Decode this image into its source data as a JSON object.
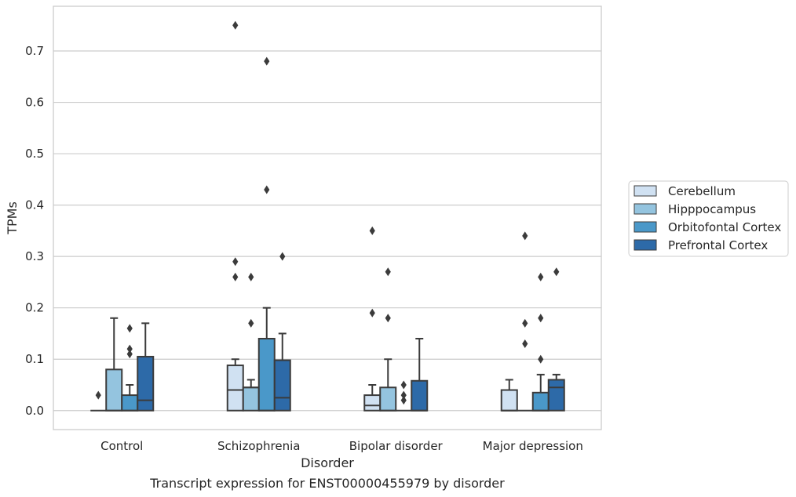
{
  "chart_data": {
    "type": "box",
    "title": "",
    "caption": "Transcript expression for ENST00000455979 by disorder",
    "xlabel": "Disorder",
    "ylabel": "TPMs",
    "ylim": [
      -0.037,
      0.787
    ],
    "yticks": [
      "0.0",
      "0.1",
      "0.2",
      "0.3",
      "0.4",
      "0.5",
      "0.6",
      "0.7"
    ],
    "grid": "horizontal",
    "legend_position": "right",
    "categories": [
      "Control",
      "Schizophrenia",
      "Bipolar disorder",
      "Major depression"
    ],
    "series": [
      {
        "name": "Cerebellum",
        "color": "#d0e1f2",
        "boxes": [
          {
            "q1": 0.0,
            "median": 0.0,
            "q3": 0.0,
            "whisker_low": 0.0,
            "whisker_high": 0.0,
            "outliers": [
              0.03
            ]
          },
          {
            "q1": 0.0,
            "median": 0.04,
            "q3": 0.088,
            "whisker_low": 0.0,
            "whisker_high": 0.1,
            "outliers": [
              0.29,
              0.26,
              0.75
            ]
          },
          {
            "q1": 0.0,
            "median": 0.01,
            "q3": 0.03,
            "whisker_low": 0.0,
            "whisker_high": 0.05,
            "outliers": [
              0.19,
              0.35
            ]
          },
          {
            "q1": 0.0,
            "median": 0.0,
            "q3": 0.04,
            "whisker_low": 0.0,
            "whisker_high": 0.06,
            "outliers": []
          }
        ]
      },
      {
        "name": "Hipppocampus",
        "color": "#94c4df",
        "boxes": [
          {
            "q1": 0.0,
            "median": 0.0,
            "q3": 0.08,
            "whisker_low": 0.0,
            "whisker_high": 0.18,
            "outliers": []
          },
          {
            "q1": 0.0,
            "median": 0.045,
            "q3": 0.045,
            "whisker_low": 0.0,
            "whisker_high": 0.06,
            "outliers": [
              0.17,
              0.26
            ]
          },
          {
            "q1": 0.0,
            "median": 0.0,
            "q3": 0.045,
            "whisker_low": 0.0,
            "whisker_high": 0.1,
            "outliers": [
              0.18,
              0.27
            ]
          },
          {
            "q1": 0.0,
            "median": 0.0,
            "q3": 0.0,
            "whisker_low": 0.0,
            "whisker_high": 0.0,
            "outliers": [
              0.13,
              0.17,
              0.34
            ]
          }
        ]
      },
      {
        "name": "Orbitofontal Cortex",
        "color": "#4a98c9",
        "boxes": [
          {
            "q1": 0.0,
            "median": 0.0,
            "q3": 0.03,
            "whisker_low": 0.0,
            "whisker_high": 0.05,
            "outliers": [
              0.11,
              0.12,
              0.16
            ]
          },
          {
            "q1": 0.0,
            "median": 0.0,
            "q3": 0.14,
            "whisker_low": 0.0,
            "whisker_high": 0.2,
            "outliers": [
              0.43,
              0.68
            ]
          },
          {
            "q1": 0.0,
            "median": 0.0,
            "q3": 0.0,
            "whisker_low": 0.0,
            "whisker_high": 0.0,
            "outliers": [
              0.02,
              0.03,
              0.05
            ]
          },
          {
            "q1": 0.0,
            "median": 0.0,
            "q3": 0.035,
            "whisker_low": 0.0,
            "whisker_high": 0.07,
            "outliers": [
              0.1,
              0.18,
              0.26
            ]
          }
        ]
      },
      {
        "name": "Prefrontal Cortex",
        "color": "#2d6aa8",
        "boxes": [
          {
            "q1": 0.0,
            "median": 0.02,
            "q3": 0.105,
            "whisker_low": 0.0,
            "whisker_high": 0.17,
            "outliers": []
          },
          {
            "q1": 0.0,
            "median": 0.025,
            "q3": 0.098,
            "whisker_low": 0.0,
            "whisker_high": 0.15,
            "outliers": [
              0.3
            ]
          },
          {
            "q1": 0.0,
            "median": 0.0,
            "q3": 0.058,
            "whisker_low": 0.0,
            "whisker_high": 0.14,
            "outliers": []
          },
          {
            "q1": 0.0,
            "median": 0.045,
            "q3": 0.06,
            "whisker_low": 0.0,
            "whisker_high": 0.07,
            "outliers": [
              0.27
            ]
          }
        ]
      }
    ]
  }
}
